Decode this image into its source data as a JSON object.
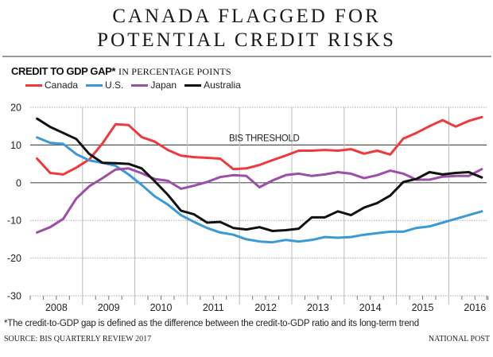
{
  "header": {
    "title_line1": "CANADA FLAGGED FOR",
    "title_line2": "POTENTIAL CREDIT RISKS"
  },
  "subtitle": {
    "bold": "CREDIT TO GDP GAP*",
    "unit": "IN PERCENTAGE POINTS"
  },
  "footer": {
    "footnote": "*The credit-to-GDP gap is defined as the difference between the credit-to-GDP ratio and its long-term trend",
    "source": "SOURCE: BIS QUARTERLY REVIEW 2017",
    "credit": "NATIONAL POST"
  },
  "chart_data": {
    "type": "line",
    "title": "Credit to GDP gap",
    "ylabel": "Percentage points",
    "xlabel": "",
    "ylim": [
      -30,
      20
    ],
    "yticks": [
      20,
      10,
      0,
      -10,
      -20,
      -30
    ],
    "years": [
      "2008",
      "2009",
      "2010",
      "2011",
      "2012",
      "2013",
      "2014",
      "2015",
      "2016"
    ],
    "x": [
      "2008Q1",
      "2008Q2",
      "2008Q3",
      "2008Q4",
      "2009Q1",
      "2009Q2",
      "2009Q3",
      "2009Q4",
      "2010Q1",
      "2010Q2",
      "2010Q3",
      "2010Q4",
      "2011Q1",
      "2011Q2",
      "2011Q3",
      "2011Q4",
      "2012Q1",
      "2012Q2",
      "2012Q3",
      "2012Q4",
      "2013Q1",
      "2013Q2",
      "2013Q3",
      "2013Q4",
      "2014Q1",
      "2014Q2",
      "2014Q3",
      "2014Q4",
      "2015Q1",
      "2015Q2",
      "2015Q3",
      "2015Q4",
      "2016Q1",
      "2016Q2",
      "2016Q3"
    ],
    "grid": "horizontal solid at 0 and 10, dotted elsewhere; vertical at year boundaries",
    "annotations": [
      {
        "text": "BIS THRESHOLD",
        "y": 10
      }
    ],
    "legend_position": "top-left",
    "series": [
      {
        "name": "Canada",
        "color": "#f0393a",
        "values": [
          6.4,
          2.6,
          2.2,
          4.0,
          6.2,
          10.4,
          15.5,
          15.3,
          12.1,
          10.9,
          8.7,
          7.2,
          6.8,
          6.6,
          6.4,
          3.6,
          3.8,
          4.7,
          6.0,
          7.2,
          8.5,
          8.5,
          8.7,
          8.5,
          8.9,
          7.7,
          8.5,
          7.5,
          11.7,
          13.2,
          15.0,
          16.6,
          14.9,
          16.4,
          17.4
        ]
      },
      {
        "name": "U.S.",
        "color": "#3a9ad9",
        "values": [
          12.0,
          10.6,
          10.3,
          7.6,
          5.9,
          5.3,
          4.5,
          2.2,
          -0.6,
          -3.6,
          -5.8,
          -8.6,
          -10.4,
          -12.0,
          -13.2,
          -13.8,
          -15.0,
          -15.6,
          -15.8,
          -15.2,
          -15.6,
          -15.2,
          -14.4,
          -14.6,
          -14.4,
          -13.8,
          -13.4,
          -13.0,
          -13.0,
          -12.0,
          -11.6,
          -10.6,
          -9.6,
          -8.6,
          -7.6
        ]
      },
      {
        "name": "Japan",
        "color": "#9b4fa8",
        "values": [
          -13.2,
          -11.8,
          -9.6,
          -4.2,
          -0.9,
          1.2,
          3.5,
          3.8,
          2.5,
          1.0,
          0.5,
          -1.6,
          -0.8,
          0.2,
          1.5,
          2.0,
          1.8,
          -1.2,
          0.6,
          2.0,
          2.4,
          1.8,
          2.2,
          2.8,
          2.4,
          1.2,
          2.0,
          3.2,
          2.4,
          0.8,
          0.8,
          1.6,
          1.8,
          1.8,
          3.6
        ]
      },
      {
        "name": "Australia",
        "color": "#111111",
        "values": [
          17.0,
          14.8,
          13.2,
          11.6,
          7.6,
          5.3,
          5.2,
          5.0,
          3.8,
          0.4,
          -3.2,
          -7.4,
          -8.4,
          -10.6,
          -10.4,
          -12.0,
          -12.4,
          -11.8,
          -12.8,
          -12.6,
          -12.2,
          -9.2,
          -9.2,
          -7.6,
          -8.6,
          -6.6,
          -5.4,
          -3.4,
          0.2,
          1.0,
          2.8,
          2.2,
          2.6,
          2.8,
          1.4
        ]
      }
    ]
  }
}
